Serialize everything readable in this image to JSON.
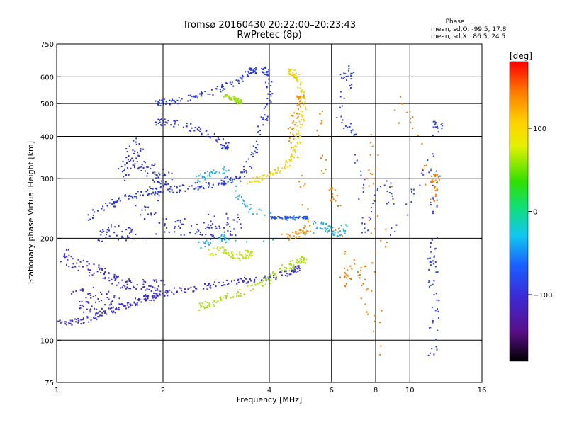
{
  "chart_data": {
    "type": "scatter",
    "title": "Tromsø 20160430 20:22:00–20:23:43",
    "subtitle": "RwPretec (8p)",
    "xlabel": "Frequency [MHz]",
    "ylabel": "Stationary phase Virtual Height [km]",
    "xscale": "log",
    "yscale": "log",
    "xlim": [
      1,
      16
    ],
    "ylim": [
      75,
      750
    ],
    "x_ticks": [
      1,
      2,
      4,
      6,
      8,
      10,
      16
    ],
    "x_tick_labels": [
      "1",
      "2",
      "4",
      "6",
      "8",
      "10",
      "16"
    ],
    "x_grid_lines": [
      2,
      4,
      6,
      8,
      10
    ],
    "y_ticks": [
      75,
      100,
      200,
      300,
      400,
      500,
      600,
      750
    ],
    "y_tick_labels": [
      "75",
      "100",
      "200",
      "300",
      "400",
      "500",
      "600",
      "750"
    ],
    "y_grid_lines": [
      100,
      200,
      300,
      400,
      500,
      600
    ],
    "grid": true,
    "stats": {
      "heading": "Phase",
      "line1": "mean, sd,O: -99.5, 17.8",
      "line2": "mean, sd,X:  86.5, 24.5"
    },
    "colorbar": {
      "label": "[deg]",
      "range": [
        -180,
        180
      ],
      "ticks": [
        100,
        0,
        -100
      ],
      "tick_labels": [
        "100",
        "0",
        "−100"
      ],
      "colormap": "rainbow (black-purple-blue-cyan-green-yellow-red)"
    },
    "series": [
      {
        "trace": "O-low",
        "color": "#3a2bd8",
        "jitter": 0.045,
        "points": [
          [
            1.0,
            112
          ],
          [
            1.1,
            113
          ],
          [
            1.2,
            115
          ],
          [
            1.3,
            118
          ],
          [
            1.4,
            121
          ],
          [
            1.5,
            124
          ],
          [
            1.6,
            127
          ],
          [
            1.7,
            130
          ],
          [
            1.8,
            133
          ],
          [
            1.9,
            135
          ],
          [
            2.0,
            137
          ],
          [
            2.2,
            140
          ],
          [
            2.5,
            143
          ],
          [
            2.8,
            146
          ],
          [
            3.2,
            148
          ],
          [
            3.5,
            150
          ],
          [
            4.0,
            152
          ],
          [
            4.4,
            158
          ],
          [
            4.8,
            163
          ]
        ]
      },
      {
        "trace": "O-lowband",
        "color": "#3a2bd8",
        "jitter": 0.08,
        "points": [
          [
            1.05,
            180
          ],
          [
            1.1,
            170
          ],
          [
            1.2,
            165
          ],
          [
            1.3,
            160
          ],
          [
            1.4,
            155
          ],
          [
            1.5,
            150
          ],
          [
            1.6,
            147
          ],
          [
            1.8,
            145
          ],
          [
            2.0,
            145
          ],
          [
            1.1,
            140
          ],
          [
            1.3,
            135
          ],
          [
            1.5,
            130
          ],
          [
            1.2,
            125
          ]
        ]
      },
      {
        "trace": "O-F",
        "color": "#2233dd",
        "jitter": 0.05,
        "points": [
          [
            1.2,
            230
          ],
          [
            1.4,
            250
          ],
          [
            1.5,
            260
          ],
          [
            1.7,
            270
          ],
          [
            1.9,
            275
          ],
          [
            2.0,
            278
          ],
          [
            2.2,
            280
          ],
          [
            2.5,
            285
          ],
          [
            2.8,
            290
          ],
          [
            3.0,
            295
          ],
          [
            3.3,
            300
          ],
          [
            3.5,
            330
          ],
          [
            3.7,
            380
          ],
          [
            3.9,
            460
          ],
          [
            4.0,
            560
          ],
          [
            3.9,
            630
          ]
        ]
      },
      {
        "trace": "O-F-upper",
        "color": "#2233dd",
        "jitter": 0.04,
        "points": [
          [
            1.9,
            500
          ],
          [
            2.0,
            505
          ],
          [
            2.2,
            510
          ],
          [
            2.5,
            525
          ],
          [
            2.8,
            545
          ],
          [
            3.1,
            570
          ],
          [
            3.4,
            600
          ],
          [
            3.6,
            625
          ]
        ]
      },
      {
        "trace": "O-F-mid",
        "color": "#2a2fd0",
        "jitter": 0.05,
        "points": [
          [
            1.9,
            440
          ],
          [
            2.0,
            440
          ],
          [
            2.2,
            435
          ],
          [
            2.5,
            420
          ],
          [
            2.8,
            395
          ],
          [
            3.0,
            375
          ]
        ]
      },
      {
        "trace": "O-cluster",
        "color": "#2a2fd0",
        "jitter": 0.1,
        "points": [
          [
            1.5,
            300
          ],
          [
            1.6,
            330
          ],
          [
            1.7,
            350
          ],
          [
            1.6,
            380
          ],
          [
            1.8,
            320
          ],
          [
            1.9,
            300
          ],
          [
            2.1,
            310
          ],
          [
            1.7,
            240
          ],
          [
            2.0,
            230
          ],
          [
            2.3,
            210
          ],
          [
            2.6,
            215
          ],
          [
            2.9,
            205
          ],
          [
            3.2,
            215
          ],
          [
            3.1,
            230
          ],
          [
            1.3,
            200
          ],
          [
            1.4,
            210
          ],
          [
            1.6,
            205
          ]
        ]
      },
      {
        "trace": "X-F",
        "color": "#f0d400",
        "jitter": 0.04,
        "points": [
          [
            3.5,
            295
          ],
          [
            3.8,
            300
          ],
          [
            4.1,
            310
          ],
          [
            4.4,
            325
          ],
          [
            4.6,
            345
          ],
          [
            4.8,
            380
          ],
          [
            4.9,
            430
          ],
          [
            5.0,
            500
          ],
          [
            4.9,
            560
          ],
          [
            4.8,
            600
          ],
          [
            4.6,
            620
          ]
        ]
      },
      {
        "trace": "X-F-low",
        "color": "#a0e000",
        "jitter": 0.05,
        "points": [
          [
            2.5,
            125
          ],
          [
            2.7,
            128
          ],
          [
            3.0,
            133
          ],
          [
            3.3,
            138
          ],
          [
            3.7,
            145
          ],
          [
            4.0,
            152
          ],
          [
            4.3,
            160
          ],
          [
            4.6,
            166
          ],
          [
            5.0,
            172
          ]
        ]
      },
      {
        "trace": "X-mid",
        "color": "#c0e000",
        "jitter": 0.05,
        "points": [
          [
            2.7,
            180
          ],
          [
            2.9,
            185
          ],
          [
            3.1,
            180
          ],
          [
            3.3,
            176
          ],
          [
            3.5,
            180
          ]
        ]
      },
      {
        "trace": "X-upper",
        "color": "#9edd10",
        "jitter": 0.03,
        "points": [
          [
            3.0,
            530
          ],
          [
            3.1,
            520
          ],
          [
            3.2,
            515
          ],
          [
            3.3,
            505
          ]
        ]
      },
      {
        "trace": "X-orange",
        "color": "#f09000",
        "jitter": 0.05,
        "points": [
          [
            4.4,
            200
          ],
          [
            4.8,
            205
          ],
          [
            5.0,
            210
          ],
          [
            5.2,
            215
          ],
          [
            4.6,
            400
          ],
          [
            4.7,
            450
          ],
          [
            4.9,
            520
          ]
        ]
      },
      {
        "trace": "Blue-230",
        "color": "#2a4fe8",
        "jitter": 0.015,
        "points": [
          [
            4.0,
            230
          ],
          [
            4.2,
            230
          ],
          [
            4.5,
            230
          ],
          [
            4.8,
            230
          ],
          [
            5.1,
            230
          ]
        ]
      },
      {
        "trace": "Cyan-F2",
        "color": "#20b0e0",
        "jitter": 0.05,
        "points": [
          [
            2.5,
            300
          ],
          [
            2.7,
            310
          ],
          [
            3.0,
            320
          ],
          [
            3.3,
            260
          ],
          [
            3.6,
            240
          ],
          [
            5.5,
            220
          ],
          [
            5.8,
            215
          ],
          [
            6.2,
            205
          ],
          [
            6.5,
            215
          ],
          [
            2.5,
            190
          ],
          [
            3.0,
            200
          ]
        ]
      },
      {
        "trace": "Sparse-high",
        "color": "#2a3fe0",
        "jitter": 0.06,
        "points": [
          [
            6.5,
            600
          ],
          [
            6.8,
            640
          ],
          [
            6.3,
            450
          ],
          [
            7.0,
            400
          ],
          [
            7.5,
            210
          ],
          [
            8.5,
            300
          ],
          [
            9.0,
            200
          ],
          [
            11.5,
            350
          ],
          [
            11.7,
            200
          ],
          [
            11.5,
            170
          ],
          [
            11.8,
            125
          ],
          [
            11.6,
            90
          ],
          [
            12.0,
            430
          ]
        ]
      },
      {
        "trace": "Sparse-orange",
        "color": "#f07a00",
        "jitter": 0.06,
        "points": [
          [
            5.5,
            500
          ],
          [
            5.8,
            300
          ],
          [
            6.2,
            260
          ],
          [
            6.5,
            140
          ],
          [
            7.0,
            170
          ],
          [
            7.6,
            120
          ],
          [
            7.9,
            450
          ],
          [
            8.0,
            78
          ],
          [
            9.5,
            520
          ],
          [
            11.6,
            260
          ],
          [
            11.8,
            300
          ]
        ]
      }
    ]
  }
}
